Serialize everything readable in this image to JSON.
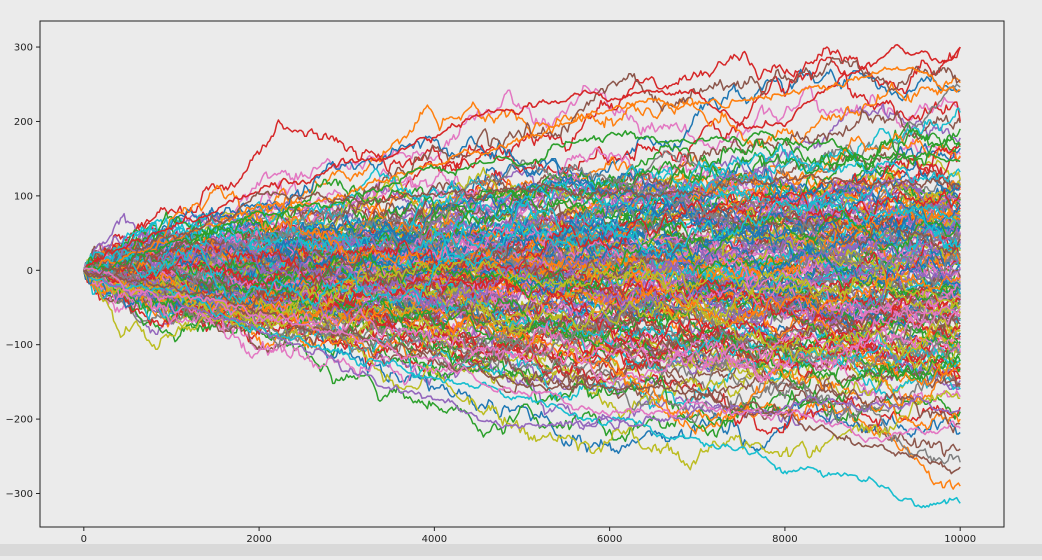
{
  "chart_data": {
    "type": "line",
    "title": "",
    "xlabel": "",
    "ylabel": "",
    "xlim": [
      -500,
      10500
    ],
    "ylim": [
      -345,
      335
    ],
    "x_ticks": [
      0,
      2000,
      4000,
      6000,
      8000,
      10000
    ],
    "y_ticks": [
      -300,
      -200,
      -100,
      0,
      100,
      200,
      300
    ],
    "x_tick_labels": [
      "0",
      "2000",
      "4000",
      "6000",
      "8000",
      "10000"
    ],
    "y_tick_labels": [
      "-300",
      "-200",
      "-100",
      "0",
      "100",
      "200",
      "300"
    ],
    "grid": false,
    "legend": "none",
    "background": "#ebebeb",
    "series_count": 200,
    "steps_per_series": 10000,
    "palette": [
      "#1f77b4",
      "#ff7f0e",
      "#2ca02c",
      "#d62728",
      "#9467bd",
      "#8c564b",
      "#e377c2",
      "#7f7f7f",
      "#bcbd22",
      "#17becf"
    ],
    "highlighted_paths": [
      {
        "color": "#d62728",
        "x": [
          0,
          1000,
          2000,
          3000,
          4000,
          5000,
          6000,
          7000,
          7500,
          8000,
          8500,
          9000,
          9300,
          9600,
          9800,
          10000
        ],
        "values": [
          0,
          60,
          110,
          130,
          180,
          225,
          235,
          235,
          200,
          195,
          240,
          280,
          300,
          285,
          275,
          295
        ]
      },
      {
        "color": "#ff7f0e",
        "x": [
          0,
          1000,
          2000,
          3000,
          4000,
          5000,
          6000,
          7000,
          8000,
          9000,
          9400,
          10000
        ],
        "values": [
          0,
          40,
          80,
          105,
          140,
          175,
          215,
          225,
          230,
          255,
          270,
          240
        ]
      },
      {
        "color": "#2ca02c",
        "x": [
          0,
          1000,
          2000,
          3000,
          4000,
          5000,
          6000,
          7000,
          8000,
          9000,
          10000
        ],
        "values": [
          0,
          30,
          70,
          100,
          140,
          150,
          185,
          170,
          175,
          160,
          145
        ]
      },
      {
        "color": "#17becf",
        "x": [
          0,
          1000,
          2000,
          3000,
          4000,
          5000,
          6000,
          7000,
          8000,
          9000,
          9500,
          10000
        ],
        "values": [
          0,
          -30,
          -80,
          -120,
          -150,
          -170,
          -200,
          -230,
          -270,
          -285,
          -320,
          -300
        ]
      },
      {
        "color": "#9467bd",
        "x": [
          0,
          1000,
          2000,
          3000,
          4000,
          5000,
          6000,
          7000,
          8000,
          9000,
          10000
        ],
        "values": [
          0,
          -40,
          -90,
          -130,
          -180,
          -210,
          -200,
          -190,
          -180,
          -175,
          -185
        ]
      },
      {
        "color": "#8c564b",
        "x": [
          0,
          1000,
          2000,
          3000,
          4000,
          5000,
          6000,
          7000,
          8000,
          9000,
          10000
        ],
        "values": [
          0,
          -20,
          -60,
          -90,
          -120,
          -150,
          -160,
          -170,
          -200,
          -230,
          -265
        ]
      },
      {
        "color": "#e377c2",
        "x": [
          0,
          1000,
          2000,
          3000,
          4000,
          5000,
          6000,
          7000,
          8000,
          9000,
          10000
        ],
        "values": [
          0,
          -30,
          -60,
          -90,
          -130,
          -170,
          -190,
          -180,
          -195,
          -225,
          -215
        ]
      },
      {
        "color": "#8c564b",
        "x": [
          0,
          1000,
          2000,
          3000,
          4000,
          5000,
          6000,
          7000,
          8000,
          9000,
          10000
        ],
        "values": [
          0,
          40,
          100,
          90,
          110,
          105,
          100,
          110,
          120,
          115,
          125
        ]
      }
    ]
  }
}
